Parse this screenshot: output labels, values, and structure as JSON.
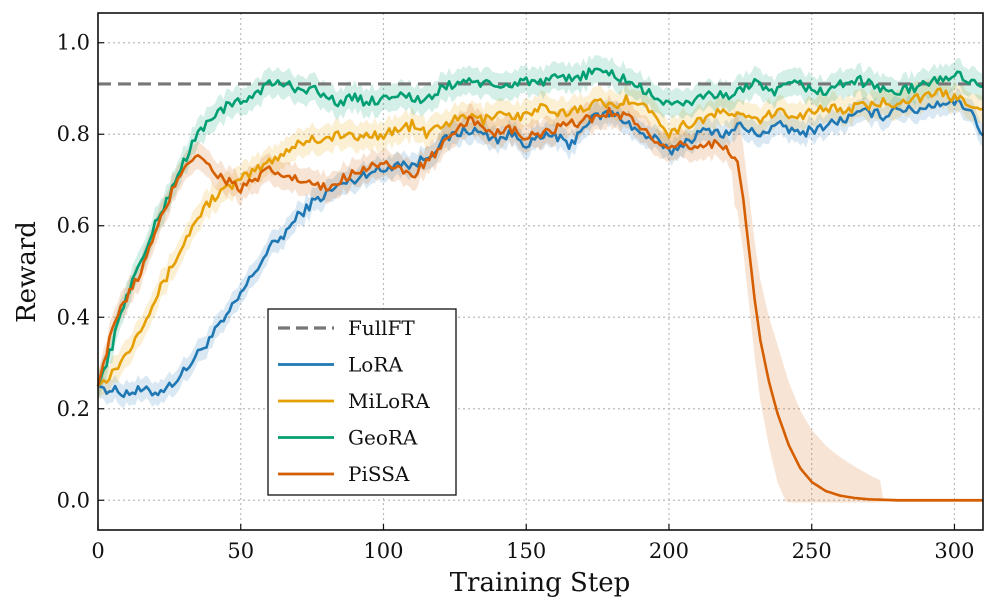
{
  "chart_data": {
    "type": "line",
    "title": "",
    "xlabel": "Training Step",
    "ylabel": "Reward",
    "xlim": [
      0,
      310
    ],
    "ylim": [
      -0.065,
      1.065
    ],
    "xticks": [
      0,
      50,
      100,
      150,
      200,
      250,
      300
    ],
    "xtick_labels": [
      "0",
      "50",
      "100",
      "150",
      "200",
      "250",
      "300"
    ],
    "yticks": [
      0.0,
      0.2,
      0.4,
      0.6,
      0.8,
      1.0
    ],
    "ytick_labels": [
      "0.0",
      "0.2",
      "0.4",
      "0.6",
      "0.8",
      "1.0"
    ],
    "grid": true,
    "legend_position": "lower-left",
    "reference_line": {
      "name": "FullFT",
      "value": 0.91,
      "color": "#777777",
      "style": "dashed"
    },
    "series": [
      {
        "name": "LoRA",
        "color": "#1f77b4",
        "x": [
          0,
          5,
          10,
          15,
          20,
          25,
          30,
          35,
          40,
          45,
          50,
          55,
          60,
          65,
          70,
          75,
          80,
          85,
          90,
          95,
          100,
          105,
          110,
          115,
          120,
          125,
          130,
          135,
          140,
          145,
          150,
          155,
          160,
          165,
          170,
          175,
          180,
          185,
          190,
          195,
          200,
          205,
          210,
          215,
          220,
          225,
          230,
          235,
          240,
          245,
          250,
          255,
          260,
          265,
          270,
          275,
          280,
          285,
          290,
          295,
          300,
          305,
          310
        ],
        "y": [
          0.25,
          0.24,
          0.235,
          0.24,
          0.235,
          0.25,
          0.28,
          0.32,
          0.36,
          0.4,
          0.45,
          0.5,
          0.55,
          0.58,
          0.62,
          0.65,
          0.67,
          0.69,
          0.7,
          0.72,
          0.72,
          0.74,
          0.73,
          0.75,
          0.78,
          0.8,
          0.81,
          0.8,
          0.79,
          0.8,
          0.78,
          0.79,
          0.8,
          0.77,
          0.82,
          0.84,
          0.845,
          0.83,
          0.8,
          0.79,
          0.76,
          0.78,
          0.8,
          0.81,
          0.8,
          0.82,
          0.8,
          0.81,
          0.82,
          0.8,
          0.81,
          0.82,
          0.83,
          0.84,
          0.85,
          0.84,
          0.86,
          0.85,
          0.86,
          0.87,
          0.87,
          0.86,
          0.8
        ],
        "band": 0.025
      },
      {
        "name": "MiLoRA",
        "color": "#e69f00",
        "x": [
          0,
          5,
          10,
          15,
          20,
          25,
          30,
          35,
          40,
          45,
          50,
          55,
          60,
          65,
          70,
          75,
          80,
          85,
          90,
          95,
          100,
          105,
          110,
          115,
          120,
          125,
          130,
          135,
          140,
          145,
          150,
          155,
          160,
          165,
          170,
          175,
          180,
          185,
          190,
          195,
          200,
          205,
          210,
          215,
          220,
          225,
          230,
          235,
          240,
          245,
          250,
          255,
          260,
          265,
          270,
          275,
          280,
          285,
          290,
          295,
          300,
          305,
          310
        ],
        "y": [
          0.25,
          0.28,
          0.32,
          0.38,
          0.44,
          0.5,
          0.56,
          0.62,
          0.66,
          0.68,
          0.7,
          0.72,
          0.74,
          0.76,
          0.78,
          0.79,
          0.79,
          0.8,
          0.79,
          0.8,
          0.8,
          0.81,
          0.82,
          0.8,
          0.82,
          0.83,
          0.84,
          0.83,
          0.85,
          0.84,
          0.84,
          0.86,
          0.84,
          0.85,
          0.86,
          0.87,
          0.86,
          0.88,
          0.86,
          0.85,
          0.8,
          0.82,
          0.83,
          0.84,
          0.85,
          0.84,
          0.83,
          0.84,
          0.85,
          0.84,
          0.85,
          0.86,
          0.85,
          0.86,
          0.86,
          0.87,
          0.87,
          0.88,
          0.88,
          0.89,
          0.88,
          0.87,
          0.86
        ],
        "band": 0.03
      },
      {
        "name": "GeoRA",
        "color": "#009e73",
        "x": [
          0,
          5,
          10,
          15,
          20,
          25,
          30,
          35,
          40,
          45,
          50,
          55,
          60,
          65,
          70,
          75,
          80,
          85,
          90,
          95,
          100,
          105,
          110,
          115,
          120,
          125,
          130,
          135,
          140,
          145,
          150,
          155,
          160,
          165,
          170,
          175,
          180,
          185,
          190,
          195,
          200,
          205,
          210,
          215,
          220,
          225,
          230,
          235,
          240,
          245,
          250,
          255,
          260,
          265,
          270,
          275,
          280,
          285,
          290,
          295,
          300,
          305,
          310
        ],
        "y": [
          0.25,
          0.34,
          0.45,
          0.52,
          0.6,
          0.67,
          0.74,
          0.8,
          0.84,
          0.86,
          0.87,
          0.89,
          0.91,
          0.91,
          0.9,
          0.9,
          0.88,
          0.87,
          0.88,
          0.87,
          0.88,
          0.89,
          0.88,
          0.87,
          0.9,
          0.91,
          0.92,
          0.91,
          0.9,
          0.91,
          0.92,
          0.91,
          0.92,
          0.92,
          0.93,
          0.94,
          0.93,
          0.92,
          0.9,
          0.88,
          0.87,
          0.86,
          0.88,
          0.89,
          0.88,
          0.9,
          0.91,
          0.89,
          0.9,
          0.91,
          0.9,
          0.89,
          0.91,
          0.92,
          0.91,
          0.9,
          0.89,
          0.9,
          0.91,
          0.92,
          0.93,
          0.92,
          0.91
        ],
        "band": 0.03
      },
      {
        "name": "PiSSA",
        "color": "#d55e00",
        "x": [
          0,
          5,
          10,
          15,
          20,
          25,
          30,
          35,
          40,
          45,
          50,
          55,
          60,
          65,
          70,
          75,
          80,
          85,
          90,
          95,
          100,
          105,
          110,
          115,
          120,
          125,
          130,
          135,
          140,
          145,
          150,
          155,
          160,
          165,
          170,
          175,
          180,
          185,
          190,
          195,
          200,
          205,
          210,
          215,
          220,
          224,
          226,
          228,
          230,
          232,
          235,
          238,
          242,
          246,
          250,
          255,
          260,
          265,
          270,
          280,
          290,
          300,
          310
        ],
        "y": [
          0.25,
          0.38,
          0.44,
          0.5,
          0.58,
          0.66,
          0.73,
          0.76,
          0.72,
          0.7,
          0.68,
          0.7,
          0.72,
          0.71,
          0.7,
          0.69,
          0.68,
          0.7,
          0.72,
          0.73,
          0.74,
          0.72,
          0.71,
          0.74,
          0.77,
          0.8,
          0.83,
          0.82,
          0.8,
          0.81,
          0.79,
          0.8,
          0.81,
          0.82,
          0.83,
          0.84,
          0.85,
          0.84,
          0.82,
          0.78,
          0.76,
          0.78,
          0.77,
          0.78,
          0.775,
          0.74,
          0.66,
          0.55,
          0.44,
          0.35,
          0.26,
          0.19,
          0.12,
          0.07,
          0.04,
          0.02,
          0.01,
          0.005,
          0.002,
          0.0,
          0.0,
          0.0,
          0.0
        ],
        "band": 0.03
      }
    ]
  }
}
